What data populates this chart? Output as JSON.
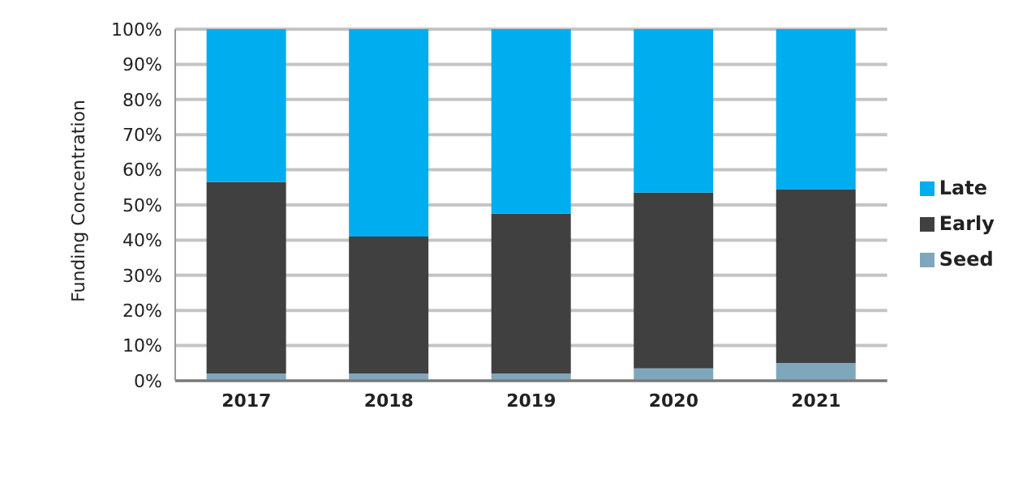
{
  "chart_data": {
    "type": "bar",
    "stacked": true,
    "ylabel": "Funding Concentration",
    "categories": [
      "2017",
      "2018",
      "2019",
      "2020",
      "2021"
    ],
    "series": [
      {
        "name": "Seed",
        "color": "#7fa7bb",
        "values": [
          2,
          2,
          2,
          3.5,
          5
        ]
      },
      {
        "name": "Early",
        "color": "#404041",
        "values": [
          54.5,
          39,
          45.5,
          50,
          49.5
        ]
      },
      {
        "name": "Late",
        "color": "#00adee",
        "values": [
          43.5,
          59,
          52.5,
          46.5,
          45.5
        ]
      }
    ],
    "ylim": [
      0,
      100
    ],
    "yticks": [
      {
        "value": 0,
        "label": "0%"
      },
      {
        "value": 10,
        "label": "10%"
      },
      {
        "value": 20,
        "label": "20%"
      },
      {
        "value": 30,
        "label": "30%"
      },
      {
        "value": 40,
        "label": "40%"
      },
      {
        "value": 50,
        "label": "50%"
      },
      {
        "value": 60,
        "label": "60%"
      },
      {
        "value": 70,
        "label": "70%"
      },
      {
        "value": 80,
        "label": "80%"
      },
      {
        "value": 90,
        "label": "90%"
      },
      {
        "value": 100,
        "label": "100%"
      }
    ],
    "grid": "y",
    "legend": "right"
  }
}
